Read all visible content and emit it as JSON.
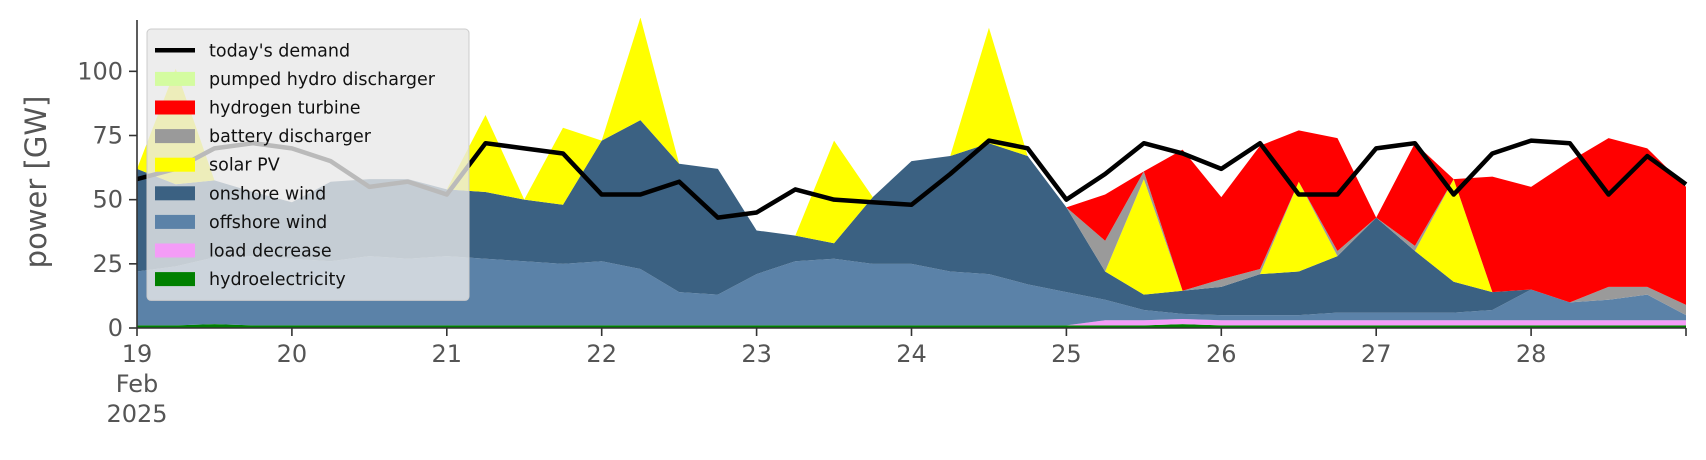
{
  "chart_data": {
    "type": "area",
    "stacked": true,
    "ylabel": "power [GW]",
    "ylim": [
      0,
      120
    ],
    "xlim": [
      0,
      10
    ],
    "x_unit": "days since 19 Feb 2025",
    "y_ticks": [
      0,
      25,
      50,
      75,
      100
    ],
    "x_ticks": [
      {
        "x": 0,
        "label": "19",
        "sub1": "Feb",
        "sub2": "2025"
      },
      {
        "x": 1,
        "label": "20"
      },
      {
        "x": 2,
        "label": "21"
      },
      {
        "x": 3,
        "label": "22"
      },
      {
        "x": 4,
        "label": "23"
      },
      {
        "x": 5,
        "label": "24"
      },
      {
        "x": 6,
        "label": "25"
      },
      {
        "x": 7,
        "label": "26"
      },
      {
        "x": 8,
        "label": "27"
      },
      {
        "x": 9,
        "label": "28"
      }
    ],
    "grid": false,
    "legend_position": "top-left",
    "legend_order": [
      "today's demand",
      "pumped hydro discharger",
      "hydrogen turbine",
      "battery discharger",
      "solar PV",
      "onshore wind",
      "offshore wind",
      "load decrease",
      "hydroelectricity"
    ],
    "x": [
      0,
      0.25,
      0.5,
      0.75,
      1,
      1.25,
      1.5,
      1.75,
      2,
      2.25,
      2.5,
      2.75,
      3,
      3.25,
      3.5,
      3.75,
      4,
      4.25,
      4.5,
      4.75,
      5,
      5.25,
      5.5,
      5.75,
      6,
      6.25,
      6.5,
      6.75,
      7,
      7.25,
      7.5,
      7.75,
      8,
      8.25,
      8.5,
      8.75,
      9,
      9.25,
      9.5,
      9.75,
      10
    ],
    "series": [
      {
        "name": "hydroelectricity",
        "color": "#008000",
        "values": [
          1,
          1,
          1.5,
          1,
          1,
          1,
          1,
          1,
          1,
          1,
          1,
          1,
          1,
          1,
          1,
          1,
          1,
          1,
          1,
          1,
          1,
          1,
          1,
          1,
          1,
          1,
          1,
          1.5,
          1,
          1,
          1,
          1,
          1,
          1,
          1,
          1,
          1,
          1,
          1,
          1,
          1
        ]
      },
      {
        "name": "load decrease",
        "color": "#f49cf7",
        "values": [
          0,
          0,
          0,
          0,
          0,
          0,
          0,
          0,
          0,
          0,
          0,
          0,
          0,
          0,
          0,
          0,
          0,
          0,
          0,
          0,
          0,
          0,
          0,
          0,
          0,
          2,
          2,
          2,
          2,
          2,
          2,
          2,
          2,
          2,
          2,
          2,
          2,
          2,
          2,
          2,
          2
        ]
      },
      {
        "name": "offshore wind",
        "color": "#5b82a8",
        "values": [
          21,
          23,
          26,
          27,
          26,
          25,
          27,
          26,
          27,
          26,
          25,
          24,
          25,
          22,
          13,
          12,
          20,
          25,
          26,
          24,
          24,
          21,
          20,
          16,
          13,
          8,
          4,
          2,
          2,
          2,
          2,
          3,
          3,
          3,
          3,
          4,
          12,
          7,
          8,
          10,
          2
        ]
      },
      {
        "name": "onshore wind",
        "color": "#3b6182",
        "values": [
          40,
          32,
          30,
          25,
          22,
          31,
          30,
          31,
          26,
          26,
          24,
          23,
          47,
          58,
          50,
          49,
          17,
          10,
          6,
          26,
          40,
          45,
          51,
          50,
          33,
          11,
          6,
          9,
          11,
          16,
          17,
          22,
          37,
          24,
          12,
          7,
          0,
          0,
          0,
          0,
          0
        ]
      },
      {
        "name": "solar PV",
        "color": "#ffff00",
        "values": [
          0,
          45,
          0,
          0,
          0,
          0,
          0,
          0,
          0,
          30,
          0,
          30,
          0,
          40,
          0,
          0,
          0,
          0,
          40,
          0,
          0,
          0,
          45,
          0,
          0,
          0,
          45,
          0,
          0,
          0,
          35,
          0,
          0,
          0,
          40,
          0,
          0,
          0,
          0,
          0,
          0
        ]
      },
      {
        "name": "battery discharger",
        "color": "#9a9a9a",
        "values": [
          0,
          0,
          0,
          0,
          0,
          0,
          0,
          0,
          0,
          0,
          0,
          0,
          0,
          0,
          0,
          0,
          0,
          0,
          0,
          0,
          0,
          0,
          0,
          0,
          0,
          12,
          3,
          0,
          3,
          2,
          0,
          2,
          0,
          2,
          0,
          0,
          0,
          0,
          5,
          3,
          4
        ]
      },
      {
        "name": "hydrogen turbine",
        "color": "#ff0000",
        "values": [
          0,
          0,
          0,
          0,
          0,
          0,
          0,
          0,
          0,
          0,
          0,
          0,
          0,
          0,
          0,
          0,
          0,
          0,
          0,
          0,
          0,
          0,
          0,
          0,
          0,
          18,
          0,
          55,
          32,
          48,
          20,
          44,
          0,
          40,
          0,
          45,
          40,
          55,
          58,
          54,
          46
        ]
      },
      {
        "name": "pumped hydro discharger",
        "color": "#d4fca0",
        "values": [
          0,
          0,
          0,
          0,
          0,
          0,
          0,
          0,
          0,
          0,
          0,
          0,
          0,
          0,
          0,
          0,
          0,
          0,
          0,
          0,
          0,
          0,
          0,
          0,
          0,
          0,
          0,
          0,
          0,
          0,
          0,
          0,
          0,
          0,
          0,
          0,
          0,
          0,
          0,
          0,
          0
        ]
      },
      {
        "name": "today's demand",
        "color": "#000000",
        "kind": "line",
        "values": [
          58,
          62,
          70,
          72,
          70,
          65,
          55,
          57,
          52,
          72,
          70,
          68,
          52,
          52,
          57,
          43,
          45,
          54,
          50,
          49,
          48,
          60,
          73,
          70,
          50,
          60,
          72,
          68,
          62,
          72,
          52,
          52,
          70,
          72,
          52,
          68,
          73,
          72,
          52,
          67,
          56
        ]
      }
    ]
  }
}
